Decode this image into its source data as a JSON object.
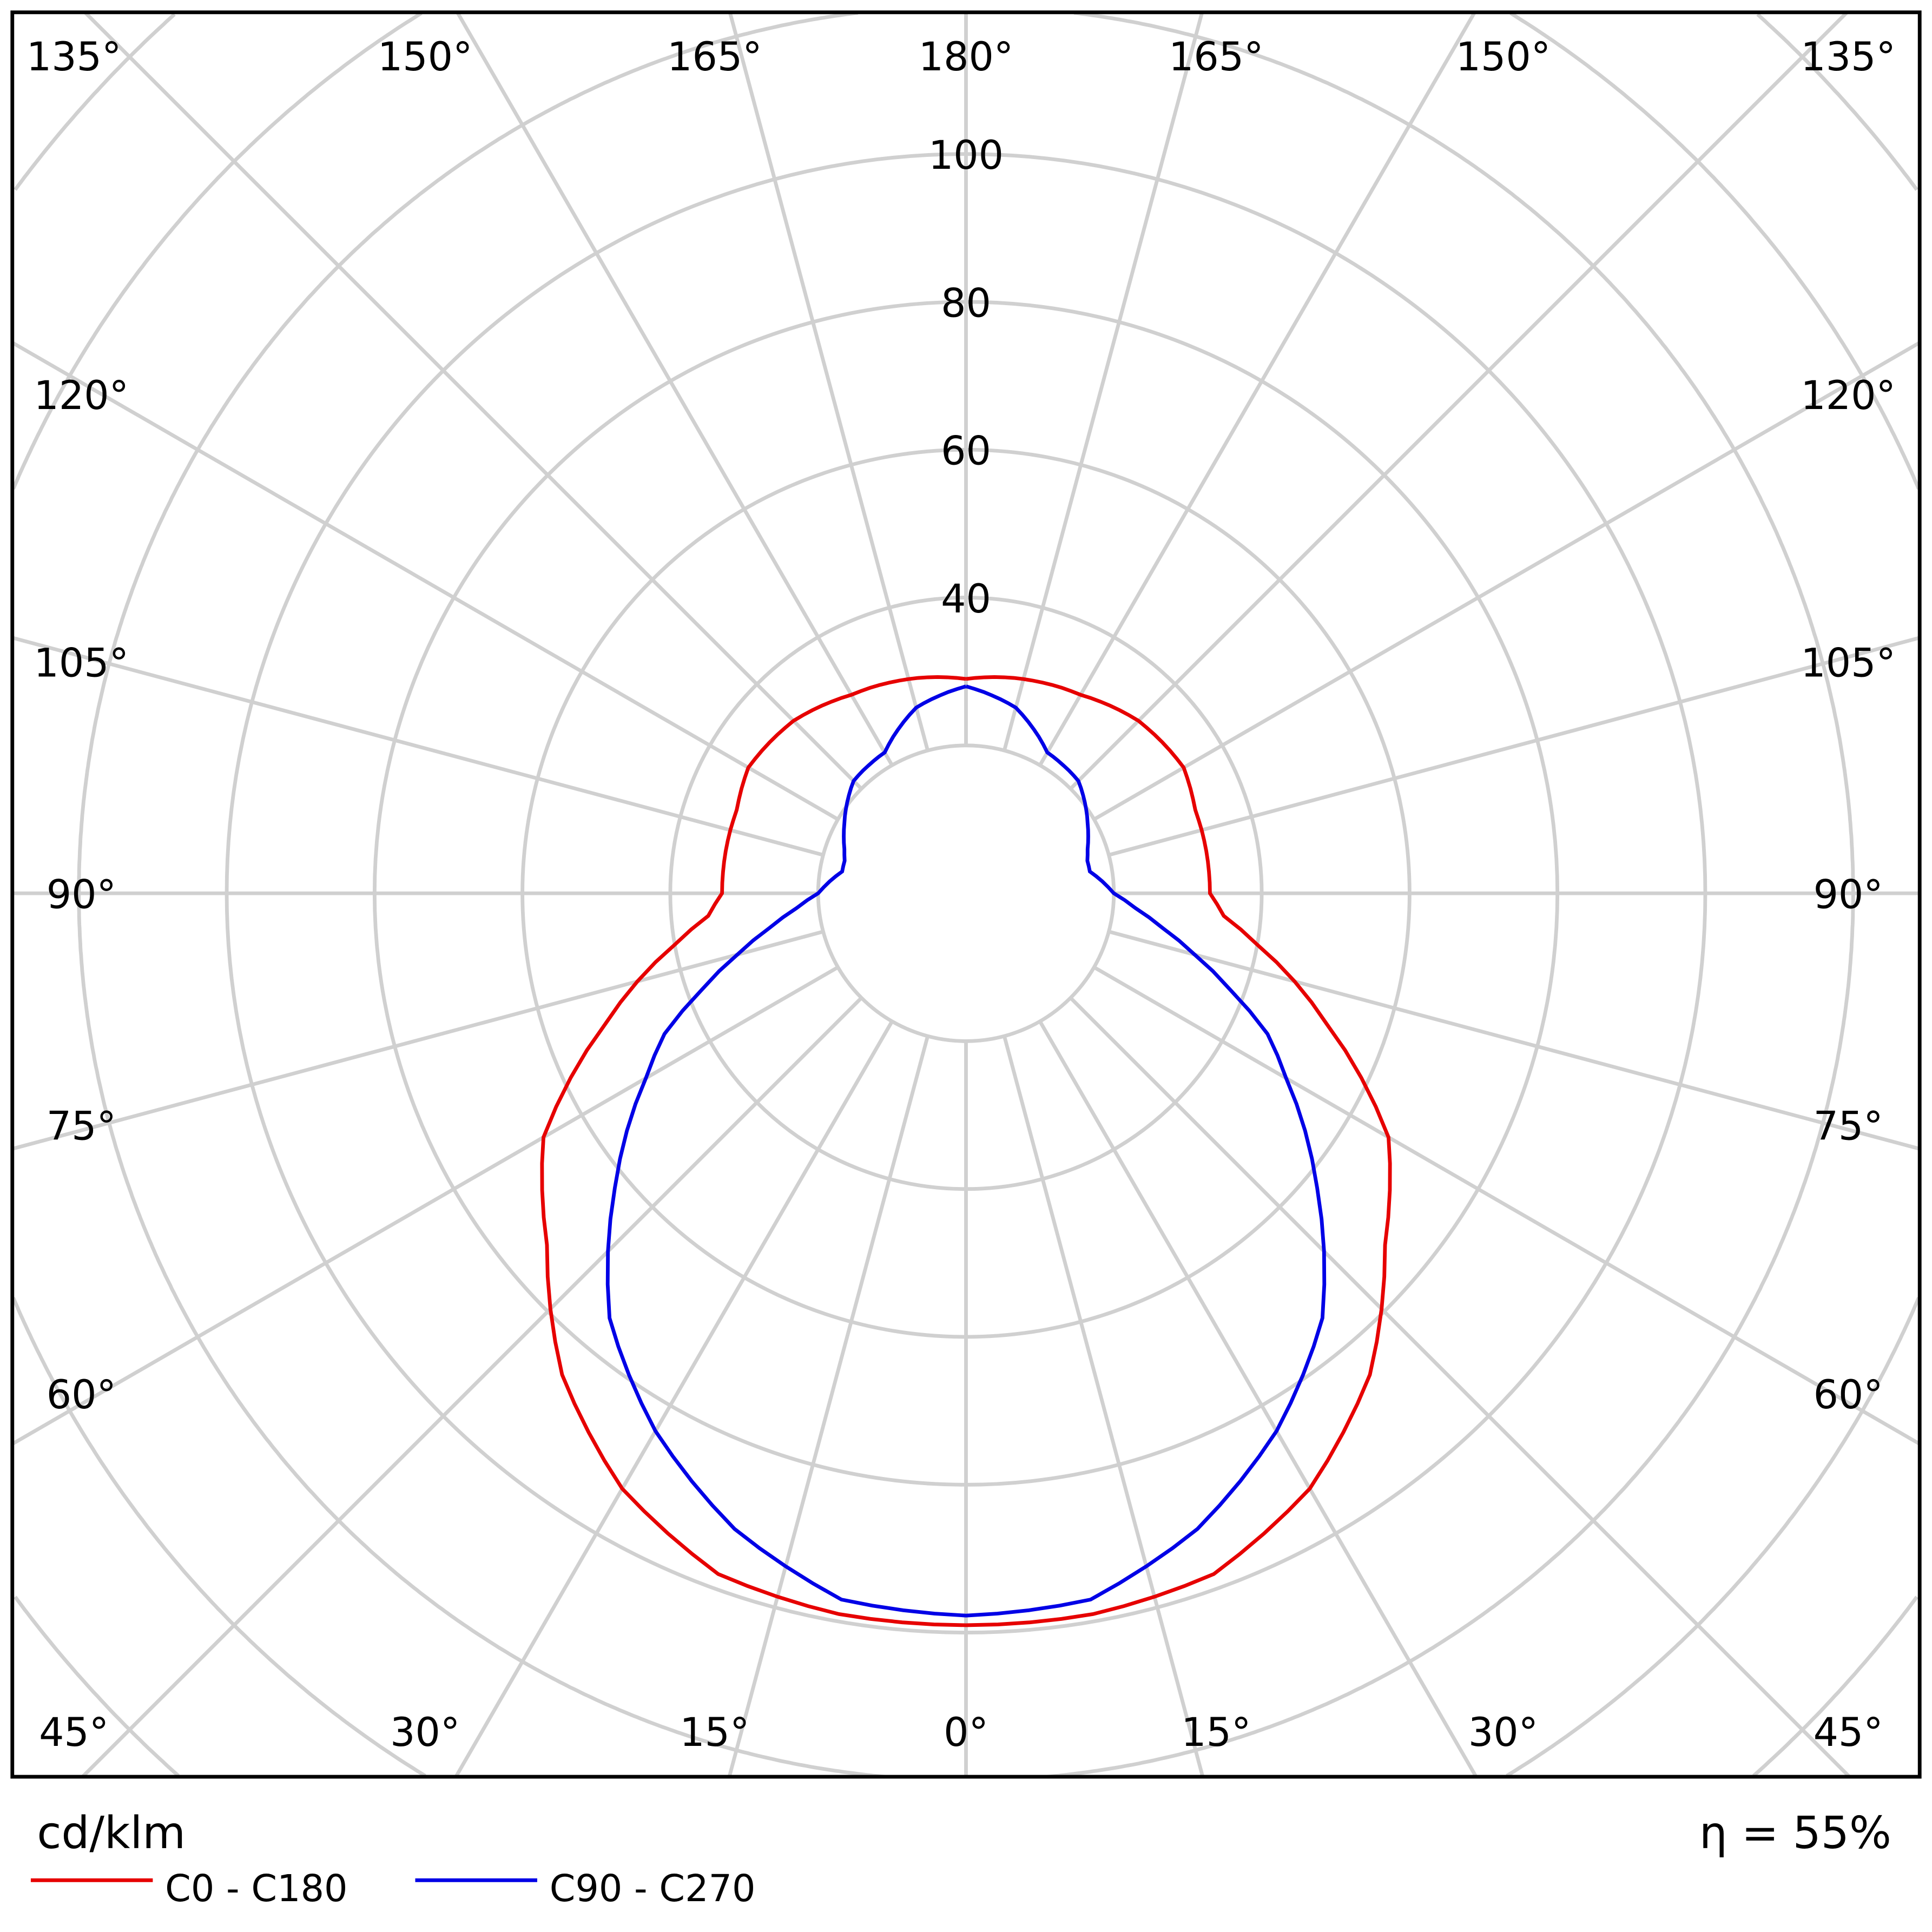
{
  "chart_data": {
    "type": "polar-line",
    "unit_label": "cd/klm",
    "efficiency_label": "η = 55%",
    "radial_ticks": [
      "40",
      "60",
      "80",
      "100"
    ],
    "radial_tick_values": [
      40,
      60,
      80,
      100
    ],
    "radial_rings": [
      20,
      40,
      60,
      80,
      100,
      120,
      140,
      160,
      180
    ],
    "angle_step_deg": 15,
    "grid": true,
    "legend_position": "bottom-left",
    "angle_labels": {
      "top": [
        "135°",
        "150°",
        "165°",
        "180°",
        "165°",
        "150°",
        "135°"
      ],
      "left": [
        "120°",
        "105°",
        "90°",
        "75°",
        "60°"
      ],
      "right": [
        "120°",
        "105°",
        "90°",
        "75°",
        "60°"
      ],
      "bottom": [
        "45°",
        "30°",
        "15°",
        "0°",
        "15°",
        "30°",
        "45°"
      ]
    },
    "angles": [
      0,
      10,
      20,
      30,
      40,
      50,
      55,
      60,
      65,
      70,
      75,
      80,
      85,
      90,
      100,
      105,
      110,
      120,
      135,
      150,
      165,
      180
    ],
    "series": [
      {
        "name": "C0 - C180",
        "color": "#e60000",
        "values": [
          99,
          99,
          98,
          93,
          85,
          74,
          70,
          66,
          59,
          52,
          46,
          40,
          35,
          33,
          33,
          33,
          33,
          34,
          33,
          31,
          30,
          29
        ]
      },
      {
        "name": "C90 - C270",
        "color": "#0000e6",
        "values": [
          97.7,
          97,
          91.5,
          84,
          75,
          62,
          56,
          50,
          45,
          38,
          32,
          27,
          23,
          20,
          17,
          17,
          17.5,
          19,
          21.5,
          22,
          26,
          28
        ]
      }
    ],
    "colors": {
      "grid": "#d0d0d0",
      "frame": "#000000"
    }
  }
}
